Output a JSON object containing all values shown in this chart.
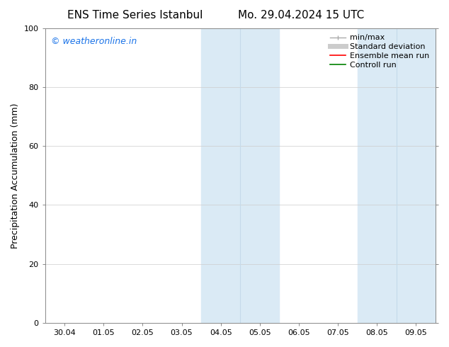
{
  "title_left": "ENS Time Series Istanbul",
  "title_right": "Mo. 29.04.2024 15 UTC",
  "ylabel": "Precipitation Accumulation (mm)",
  "ylim": [
    0,
    100
  ],
  "yticks": [
    0,
    20,
    40,
    60,
    80,
    100
  ],
  "xlim": [
    -0.5,
    9.5
  ],
  "xtick_positions": [
    0,
    1,
    2,
    3,
    4,
    5,
    6,
    7,
    8,
    9
  ],
  "xtick_labels": [
    "30.04",
    "01.05",
    "02.05",
    "03.05",
    "04.05",
    "05.05",
    "06.05",
    "07.05",
    "08.05",
    "09.05"
  ],
  "shaded_regions": [
    [
      3.5,
      4.5
    ],
    [
      4.5,
      5.5
    ],
    [
      7.5,
      8.5
    ],
    [
      8.5,
      9.5
    ]
  ],
  "shaded_color": "#daeaf5",
  "divider_lines": [
    4.5,
    8.5
  ],
  "divider_color": "#c5daea",
  "watermark_text": "© weatheronline.in",
  "watermark_color": "#1a73e8",
  "legend_entries": [
    {
      "label": "min/max",
      "color": "#aaaaaa",
      "lw": 1.0
    },
    {
      "label": "Standard deviation",
      "color": "#cccccc",
      "lw": 5
    },
    {
      "label": "Ensemble mean run",
      "color": "red",
      "lw": 1.2
    },
    {
      "label": "Controll run",
      "color": "green",
      "lw": 1.2
    }
  ],
  "background_color": "#ffffff",
  "grid_color": "#cccccc",
  "spine_color": "#888888",
  "title_fontsize": 11,
  "axis_label_fontsize": 9,
  "tick_fontsize": 8,
  "legend_fontsize": 8,
  "watermark_fontsize": 9
}
